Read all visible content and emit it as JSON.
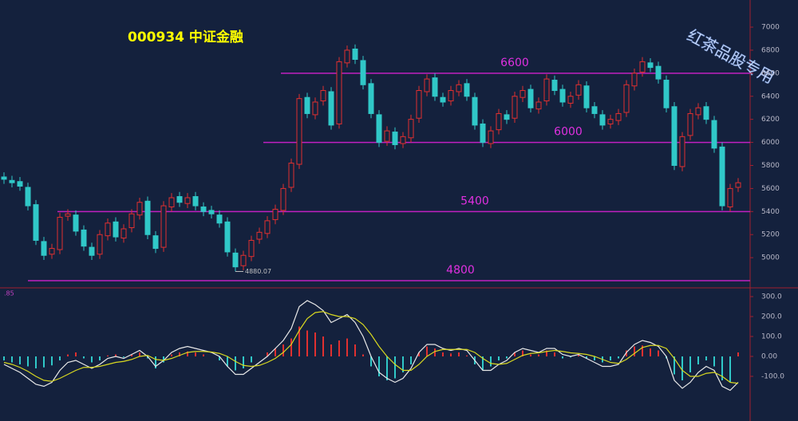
{
  "chart_data": [
    {
      "type": "candlestick",
      "title": "000934 中证金融",
      "watermark": "红茶品股专用",
      "open": [
        5700,
        5670,
        5660,
        5610,
        5460,
        5140,
        5030,
        5070,
        5360,
        5370,
        5240,
        5090,
        5030,
        5190,
        5310,
        5170,
        5260,
        5370,
        5490,
        5190,
        5090,
        5440,
        5530,
        5470,
        5530,
        5440,
        5410,
        5370,
        5310,
        5040,
        4930,
        5010,
        5160,
        5210,
        5330,
        5410,
        5610,
        5810,
        6390,
        6240,
        6360,
        6440,
        6160,
        6690,
        6810,
        6710,
        6510,
        6240,
        6010,
        6090,
        5990,
        6040,
        6210,
        6440,
        6560,
        6390,
        6360,
        6440,
        6510,
        6390,
        6160,
        5990,
        6110,
        6240,
        6210,
        6390,
        6460,
        6290,
        6360,
        6540,
        6460,
        6340,
        6410,
        6490,
        6310,
        6240,
        6160,
        6190,
        6260,
        6490,
        6610,
        6690,
        6660,
        6540,
        6310,
        5790,
        6060,
        6240,
        6310,
        6190,
        5960,
        5440,
        5610
      ],
      "high": [
        5740,
        5710,
        5700,
        5650,
        5500,
        5180,
        5120,
        5390,
        5420,
        5410,
        5280,
        5130,
        5240,
        5340,
        5350,
        5290,
        5420,
        5520,
        5530,
        5230,
        5490,
        5560,
        5570,
        5560,
        5570,
        5480,
        5450,
        5410,
        5350,
        5080,
        5060,
        5190,
        5260,
        5360,
        5460,
        5640,
        5860,
        6420,
        6430,
        6390,
        6490,
        6480,
        6740,
        6840,
        6850,
        6750,
        6550,
        6280,
        6140,
        6130,
        6090,
        6240,
        6490,
        6590,
        6600,
        6430,
        6490,
        6540,
        6550,
        6430,
        6200,
        6140,
        6290,
        6280,
        6440,
        6490,
        6500,
        6390,
        6590,
        6580,
        6500,
        6440,
        6540,
        6530,
        6350,
        6280,
        6240,
        6290,
        6540,
        6640,
        6740,
        6730,
        6700,
        6580,
        6350,
        6090,
        6290,
        6340,
        6350,
        6230,
        6000,
        5640,
        5690
      ],
      "low": [
        5640,
        5610,
        5580,
        5410,
        5110,
        4980,
        4990,
        5030,
        5320,
        5190,
        5060,
        4980,
        4990,
        5150,
        5140,
        5130,
        5220,
        5330,
        5160,
        5040,
        5050,
        5400,
        5440,
        5430,
        5410,
        5360,
        5340,
        5260,
        5010,
        4880.07,
        4890,
        4970,
        5120,
        5170,
        5290,
        5370,
        5570,
        5770,
        6210,
        6200,
        6320,
        6110,
        6120,
        6650,
        6680,
        6460,
        6210,
        5960,
        5970,
        5940,
        5950,
        6000,
        6170,
        6400,
        6360,
        6310,
        6320,
        6400,
        6360,
        6110,
        5960,
        5950,
        6070,
        6160,
        6170,
        6350,
        6260,
        6250,
        6320,
        6410,
        6310,
        6300,
        6370,
        6260,
        6210,
        6110,
        6120,
        6150,
        6220,
        6450,
        6570,
        6610,
        6510,
        6260,
        5760,
        5750,
        6020,
        6200,
        6160,
        5910,
        5410,
        5400,
        5570
      ],
      "close": [
        5680,
        5650,
        5620,
        5450,
        5150,
        5020,
        5080,
        5350,
        5380,
        5230,
        5100,
        5020,
        5200,
        5300,
        5180,
        5250,
        5380,
        5480,
        5200,
        5080,
        5450,
        5520,
        5480,
        5520,
        5450,
        5400,
        5380,
        5300,
        5050,
        4920,
        5020,
        5150,
        5220,
        5320,
        5420,
        5600,
        5820,
        6380,
        6250,
        6350,
        6450,
        6150,
        6700,
        6800,
        6720,
        6500,
        6250,
        6000,
        6100,
        5980,
        6050,
        6200,
        6450,
        6550,
        6400,
        6350,
        6450,
        6500,
        6400,
        6150,
        6000,
        6100,
        6250,
        6200,
        6400,
        6450,
        6300,
        6350,
        6550,
        6450,
        6350,
        6400,
        6500,
        6300,
        6250,
        6150,
        6200,
        6250,
        6500,
        6600,
        6700,
        6650,
        6550,
        6300,
        5800,
        6050,
        6250,
        6300,
        6200,
        5950,
        5450,
        5600,
        5650
      ],
      "up_color": "#e03030",
      "down_color": "#30c8c8",
      "levels": [
        6600,
        6000,
        5400,
        4800
      ],
      "level_color": "#c020c0",
      "ylim": [
        4745,
        7180
      ],
      "yticks": [
        5000,
        5200,
        5400,
        5600,
        5800,
        6000,
        6200,
        6400,
        6600,
        6800,
        7000
      ]
    },
    {
      "type": "macd",
      "label": ".85",
      "histogram": [
        -20,
        -30,
        -40,
        -50,
        -60,
        -55,
        -45,
        -20,
        10,
        20,
        -10,
        -30,
        -20,
        5,
        10,
        -5,
        10,
        20,
        -10,
        -60,
        -30,
        10,
        20,
        25,
        20,
        10,
        0,
        -20,
        -50,
        -70,
        -60,
        -30,
        0,
        20,
        40,
        60,
        90,
        150,
        130,
        120,
        100,
        60,
        80,
        90,
        60,
        10,
        -50,
        -100,
        -120,
        -110,
        -80,
        -40,
        20,
        50,
        40,
        20,
        15,
        20,
        5,
        -40,
        -70,
        -50,
        -20,
        -10,
        20,
        30,
        10,
        10,
        30,
        20,
        -10,
        -5,
        10,
        -10,
        -20,
        -30,
        -20,
        -10,
        30,
        50,
        55,
        40,
        30,
        -10,
        -90,
        -120,
        -80,
        -40,
        -20,
        -50,
        -120,
        -130,
        20
      ],
      "series": [
        {
          "color": "#e8e8e8",
          "values": [
            -40,
            -60,
            -80,
            -110,
            -140,
            -150,
            -130,
            -70,
            -30,
            -20,
            -40,
            -60,
            -40,
            -10,
            0,
            -10,
            10,
            30,
            0,
            -50,
            -20,
            20,
            40,
            50,
            40,
            30,
            20,
            0,
            -50,
            -90,
            -90,
            -60,
            -30,
            0,
            40,
            80,
            140,
            250,
            280,
            260,
            230,
            170,
            190,
            210,
            170,
            100,
            0,
            -80,
            -110,
            -130,
            -110,
            -60,
            20,
            60,
            60,
            40,
            30,
            40,
            30,
            -20,
            -70,
            -70,
            -40,
            -20,
            20,
            40,
            30,
            20,
            40,
            40,
            10,
            0,
            10,
            -10,
            -30,
            -50,
            -50,
            -40,
            20,
            60,
            80,
            70,
            50,
            0,
            -120,
            -160,
            -130,
            -80,
            -50,
            -70,
            -150,
            -170,
            -130
          ]
        },
        {
          "color": "#d8d820",
          "values": [
            -30,
            -40,
            -55,
            -75,
            -100,
            -120,
            -125,
            -110,
            -90,
            -70,
            -55,
            -55,
            -50,
            -40,
            -30,
            -25,
            -15,
            0,
            5,
            -15,
            -20,
            -10,
            5,
            20,
            25,
            25,
            22,
            15,
            0,
            -25,
            -45,
            -50,
            -45,
            -30,
            -10,
            20,
            60,
            130,
            190,
            220,
            225,
            210,
            200,
            200,
            190,
            160,
            110,
            50,
            0,
            -40,
            -70,
            -70,
            -40,
            0,
            25,
            35,
            35,
            35,
            35,
            20,
            -10,
            -35,
            -40,
            -35,
            -15,
            5,
            15,
            18,
            25,
            30,
            25,
            18,
            15,
            10,
            0,
            -15,
            -30,
            -35,
            -15,
            15,
            45,
            55,
            55,
            40,
            -10,
            -70,
            -100,
            -100,
            -85,
            -80,
            -100,
            -130,
            -135
          ]
        }
      ],
      "up_color": "#e03030",
      "down_color": "#30c8c8",
      "ylim": [
        -300,
        340
      ],
      "yticks": [
        {
          "value": 300,
          "label": "300.0"
        },
        {
          "value": 200,
          "label": "200.0"
        },
        {
          "value": 100,
          "label": "100.0"
        },
        {
          "value": 0,
          "label": "0.00"
        },
        {
          "value": -100,
          "label": "-100.0"
        }
      ]
    }
  ]
}
